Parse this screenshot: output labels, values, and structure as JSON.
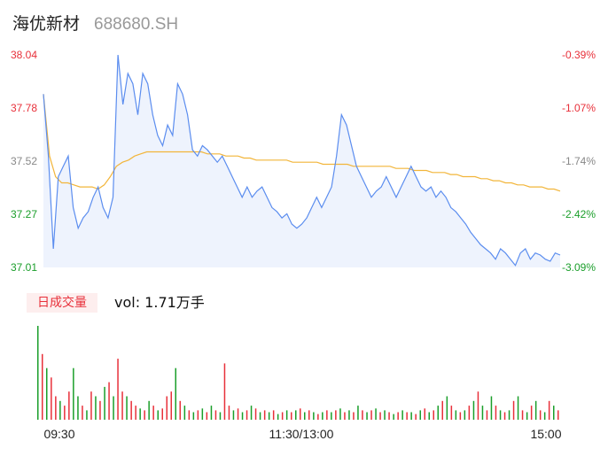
{
  "header": {
    "name": "海优新材",
    "code": "688680.SH"
  },
  "volume_tab": {
    "label": "日成交量",
    "vol_text": "vol: 1.71万手"
  },
  "colors": {
    "price_line": "#5b8def",
    "avg_line": "#f2b53a",
    "up": "#e8303a",
    "down": "#1a9e2a",
    "area": "#eef3fd"
  },
  "chart_data": [
    {
      "type": "line",
      "title": "",
      "y_left_ticks": [
        "38.04",
        "37.78",
        "37.52",
        "37.27",
        "37.01"
      ],
      "y_right_ticks": [
        "-0.39%",
        "-1.07%",
        "-1.74%",
        "-2.42%",
        "-3.09%"
      ],
      "ylim": [
        37.01,
        38.04
      ],
      "x_ticks": [
        "09:30",
        "11:30/13:00",
        "15:00"
      ],
      "series": [
        {
          "values": [
            37.85,
            37.55,
            37.1,
            37.45,
            37.5,
            37.55,
            37.3,
            37.2,
            37.25,
            37.28,
            37.35,
            37.4,
            37.3,
            37.25,
            37.35,
            38.04,
            37.8,
            37.95,
            37.9,
            37.75,
            37.95,
            37.9,
            37.75,
            37.65,
            37.6,
            37.7,
            37.65,
            37.9,
            37.85,
            37.75,
            37.58,
            37.55,
            37.6,
            37.58,
            37.55,
            37.52,
            37.55,
            37.5,
            37.45,
            37.4,
            37.35,
            37.4,
            37.35,
            37.38,
            37.4,
            37.35,
            37.3,
            37.28,
            37.25,
            37.27,
            37.22,
            37.2,
            37.22,
            37.25,
            37.3,
            37.35,
            37.3,
            37.35,
            37.4,
            37.55,
            37.75,
            37.7,
            37.6,
            37.5,
            37.45,
            37.4,
            37.35,
            37.38,
            37.4,
            37.45,
            37.4,
            37.35,
            37.4,
            37.45,
            37.5,
            37.45,
            37.4,
            37.38,
            37.4,
            37.35,
            37.38,
            37.35,
            37.3,
            37.28,
            37.25,
            37.22,
            37.18,
            37.15,
            37.12,
            37.1,
            37.08,
            37.05,
            37.1,
            37.08,
            37.05,
            37.02,
            37.08,
            37.1,
            37.05,
            37.08,
            37.07,
            37.05,
            37.04,
            37.08,
            37.07
          ],
          "color": "#5b8def"
        },
        {
          "values": [
            37.85,
            37.55,
            37.45,
            37.42,
            37.42,
            37.41,
            37.4,
            37.4,
            37.4,
            37.39,
            37.41,
            37.45,
            37.5,
            37.52,
            37.53,
            37.55,
            37.56,
            37.57,
            37.57,
            37.57,
            37.57,
            37.57,
            37.57,
            37.57,
            37.57,
            37.57,
            37.57,
            37.56,
            37.56,
            37.56,
            37.55,
            37.55,
            37.55,
            37.54,
            37.54,
            37.53,
            37.53,
            37.53,
            37.53,
            37.53,
            37.53,
            37.52,
            37.52,
            37.52,
            37.52,
            37.52,
            37.51,
            37.51,
            37.51,
            37.51,
            37.51,
            37.5,
            37.5,
            37.5,
            37.5,
            37.5,
            37.5,
            37.5,
            37.49,
            37.49,
            37.49,
            37.48,
            37.48,
            37.48,
            37.47,
            37.47,
            37.47,
            37.46,
            37.46,
            37.45,
            37.45,
            37.45,
            37.44,
            37.44,
            37.43,
            37.43,
            37.42,
            37.42,
            37.41,
            37.41,
            37.4,
            37.4,
            37.4,
            37.39,
            37.39,
            37.38
          ],
          "color": "#f2b53a"
        }
      ]
    },
    {
      "type": "bar",
      "title": "",
      "series": [
        {
          "values": [
            100,
            70,
            55,
            45,
            25,
            20,
            15,
            30,
            55,
            25,
            15,
            10,
            30,
            25,
            20,
            35,
            40,
            25,
            65,
            30,
            25,
            20,
            15,
            12,
            10,
            20,
            15,
            10,
            12,
            25,
            30,
            55,
            20,
            15,
            10,
            8,
            10,
            12,
            8,
            15,
            10,
            8,
            60,
            15,
            10,
            12,
            8,
            10,
            15,
            12,
            8,
            10,
            8,
            10,
            6,
            8,
            10,
            8,
            10,
            12,
            8,
            10,
            8,
            6,
            8,
            10,
            8,
            10,
            12,
            8,
            10,
            8,
            15,
            10,
            8,
            10,
            12,
            8,
            10,
            8,
            6,
            8,
            10,
            8,
            8,
            6,
            10,
            12,
            8,
            10,
            15,
            20,
            25,
            15,
            10,
            8,
            10,
            15,
            20,
            30,
            15,
            10,
            25,
            15,
            10,
            8,
            10,
            20,
            25,
            10,
            8,
            15,
            20,
            10,
            8,
            20,
            15,
            10
          ],
          "directions": [
            1,
            0,
            1,
            0,
            0,
            1,
            0,
            0,
            1,
            1,
            0,
            1,
            0,
            1,
            0,
            1,
            0,
            1,
            0,
            0,
            1,
            0,
            0,
            1,
            0,
            1,
            0,
            1,
            0,
            0,
            0,
            1,
            0,
            1,
            0,
            1,
            0,
            1,
            0,
            1,
            0,
            1,
            0,
            0,
            1,
            0,
            1,
            0,
            1,
            0,
            1,
            0,
            1,
            0,
            1,
            0,
            1,
            0,
            1,
            0,
            1,
            0,
            1,
            0,
            1,
            0,
            1,
            0,
            1,
            0,
            1,
            0,
            1,
            0,
            1,
            0,
            1,
            0,
            1,
            0,
            1,
            0,
            1,
            0,
            1,
            0,
            1,
            0,
            1,
            0,
            1,
            0,
            1,
            0,
            1,
            0,
            1,
            0,
            1,
            0,
            1,
            0,
            1,
            0,
            1,
            0,
            1,
            0,
            1,
            0,
            1,
            0,
            1,
            0,
            1,
            0,
            1,
            0
          ]
        }
      ]
    }
  ]
}
